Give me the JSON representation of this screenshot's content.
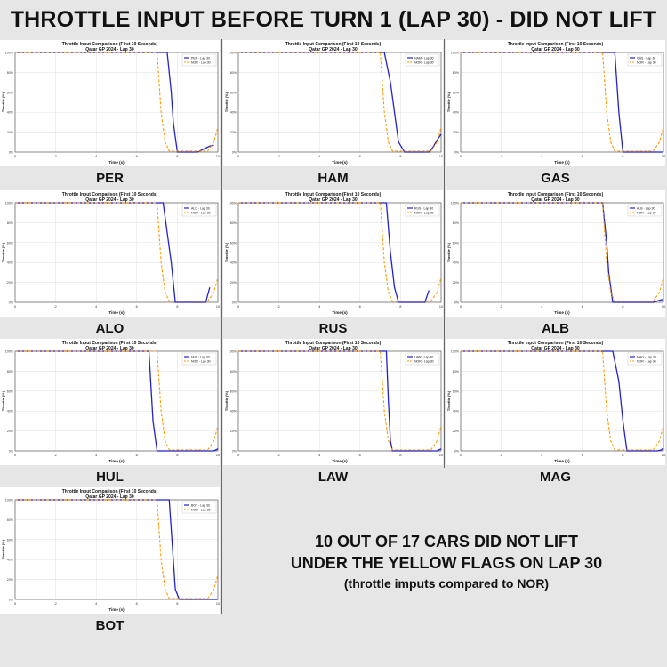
{
  "title": "THROTTLE INPUT BEFORE TURN 1 (LAP 30) - DID NOT LIFT",
  "summary": {
    "line1": "10 OUT OF 17 CARS DID NOT LIFT",
    "line2": "UNDER THE YELLOW FLAGS ON LAP 30",
    "line3": "(throttle imputs compared to NOR)"
  },
  "colors": {
    "driver": "#2222cc",
    "nor": "#ff9900",
    "grid": "#dddddd"
  },
  "chart_common": {
    "title": "Throttle Input Comparison (First 10 Seconds)",
    "subtitle": "Qatar GP 2024 - Lap 30",
    "xlabel": "Time (s)",
    "ylabel": "Throttle (%)",
    "xticks": [
      "0",
      "2",
      "4",
      "6",
      "8",
      "10"
    ],
    "yticks": [
      "0%",
      "20%",
      "40%",
      "60%",
      "80%",
      "100%"
    ]
  },
  "chart_data": [
    {
      "type": "line",
      "driver": "PER",
      "xlim": [
        0,
        10
      ],
      "ylim": [
        0,
        100
      ],
      "series": [
        {
          "name": "PER - Lap 30",
          "x": [
            0,
            7.5,
            7.7,
            7.8,
            8.0,
            9.0,
            9.3,
            9.6,
            9.8
          ],
          "y": [
            100,
            100,
            60,
            30,
            0,
            0,
            3,
            6,
            7
          ]
        },
        {
          "name": "NOR - Lap 30",
          "x": [
            0,
            7.0,
            7.2,
            7.4,
            7.6,
            9.5,
            9.8,
            10.0
          ],
          "y": [
            100,
            100,
            40,
            10,
            1,
            1,
            10,
            25
          ]
        }
      ]
    },
    {
      "type": "line",
      "driver": "HAM",
      "xlim": [
        0,
        10
      ],
      "ylim": [
        0,
        100
      ],
      "series": [
        {
          "name": "HAM - Lap 30",
          "x": [
            0,
            7.2,
            7.5,
            7.7,
            7.9,
            8.2,
            9.4,
            9.6,
            9.8,
            10.0
          ],
          "y": [
            100,
            100,
            70,
            40,
            10,
            0,
            0,
            5,
            12,
            18
          ]
        },
        {
          "name": "NOR - Lap 30",
          "x": [
            0,
            7.0,
            7.2,
            7.4,
            7.6,
            9.5,
            9.8,
            10.0
          ],
          "y": [
            100,
            100,
            40,
            10,
            1,
            1,
            10,
            25
          ]
        }
      ]
    },
    {
      "type": "line",
      "driver": "GAS",
      "xlim": [
        0,
        10
      ],
      "ylim": [
        0,
        100
      ],
      "series": [
        {
          "name": "GAS - Lap 30",
          "x": [
            0,
            7.6,
            7.8,
            8.0,
            10.0
          ],
          "y": [
            100,
            100,
            40,
            0,
            0
          ]
        },
        {
          "name": "NOR - Lap 30",
          "x": [
            0,
            7.0,
            7.2,
            7.4,
            7.6,
            9.5,
            9.8,
            10.0
          ],
          "y": [
            100,
            100,
            40,
            10,
            1,
            1,
            10,
            25
          ]
        }
      ]
    },
    {
      "type": "line",
      "driver": "ALO",
      "xlim": [
        0,
        10
      ],
      "ylim": [
        0,
        100
      ],
      "series": [
        {
          "name": "ALO - Lap 30",
          "x": [
            0,
            7.3,
            7.5,
            7.7,
            7.9,
            9.4,
            9.6
          ],
          "y": [
            100,
            100,
            70,
            40,
            0,
            0,
            15
          ]
        },
        {
          "name": "NOR - Lap 30",
          "x": [
            0,
            7.0,
            7.2,
            7.4,
            7.6,
            9.5,
            9.8,
            10.0
          ],
          "y": [
            100,
            100,
            40,
            10,
            1,
            1,
            10,
            25
          ]
        }
      ]
    },
    {
      "type": "line",
      "driver": "RUS",
      "xlim": [
        0,
        10
      ],
      "ylim": [
        0,
        100
      ],
      "series": [
        {
          "name": "RUS - Lap 30",
          "x": [
            0,
            7.3,
            7.5,
            7.7,
            7.9,
            9.2,
            9.4
          ],
          "y": [
            100,
            100,
            50,
            15,
            0,
            0,
            12
          ]
        },
        {
          "name": "NOR - Lap 30",
          "x": [
            0,
            7.0,
            7.2,
            7.4,
            7.6,
            9.5,
            9.8,
            10.0
          ],
          "y": [
            100,
            100,
            40,
            10,
            1,
            1,
            10,
            25
          ]
        }
      ]
    },
    {
      "type": "line",
      "driver": "ALB",
      "xlim": [
        0,
        10
      ],
      "ylim": [
        0,
        100
      ],
      "series": [
        {
          "name": "ALB - Lap 30",
          "x": [
            0,
            7.0,
            7.2,
            7.3,
            7.5,
            9.5,
            9.8,
            10.0
          ],
          "y": [
            100,
            100,
            60,
            30,
            0,
            0,
            2,
            3
          ]
        },
        {
          "name": "NOR - Lap 30",
          "x": [
            0,
            7.0,
            7.2,
            7.4,
            7.6,
            9.5,
            9.8,
            10.0
          ],
          "y": [
            100,
            100,
            40,
            10,
            1,
            1,
            10,
            25
          ]
        }
      ]
    },
    {
      "type": "line",
      "driver": "HUL",
      "xlim": [
        0,
        10
      ],
      "ylim": [
        0,
        100
      ],
      "series": [
        {
          "name": "HUL - Lap 30",
          "x": [
            0,
            6.6,
            6.8,
            7.0,
            9.8,
            10.0
          ],
          "y": [
            100,
            100,
            30,
            0,
            0,
            2
          ]
        },
        {
          "name": "NOR - Lap 30",
          "x": [
            0,
            7.0,
            7.2,
            7.4,
            7.6,
            9.5,
            9.8,
            10.0
          ],
          "y": [
            100,
            100,
            40,
            10,
            1,
            1,
            10,
            25
          ]
        }
      ]
    },
    {
      "type": "line",
      "driver": "LAW",
      "xlim": [
        0,
        10
      ],
      "ylim": [
        0,
        100
      ],
      "series": [
        {
          "name": "LAW - Lap 30",
          "x": [
            0,
            7.3,
            7.4,
            7.5,
            7.6,
            9.8,
            10.0
          ],
          "y": [
            100,
            100,
            50,
            10,
            0,
            0,
            2
          ]
        },
        {
          "name": "NOR - Lap 30",
          "x": [
            0,
            7.0,
            7.2,
            7.4,
            7.6,
            9.5,
            9.8,
            10.0
          ],
          "y": [
            100,
            100,
            40,
            10,
            1,
            1,
            10,
            25
          ]
        }
      ]
    },
    {
      "type": "line",
      "driver": "MAG",
      "xlim": [
        0,
        10
      ],
      "ylim": [
        0,
        100
      ],
      "series": [
        {
          "name": "MAG - Lap 30",
          "x": [
            0,
            7.5,
            7.8,
            8.0,
            8.2,
            9.7,
            9.9,
            10.0
          ],
          "y": [
            100,
            100,
            70,
            30,
            0,
            0,
            1,
            3
          ]
        },
        {
          "name": "NOR - Lap 30",
          "x": [
            0,
            7.0,
            7.2,
            7.4,
            7.6,
            9.5,
            9.8,
            10.0
          ],
          "y": [
            100,
            100,
            40,
            10,
            1,
            1,
            10,
            25
          ]
        }
      ]
    },
    {
      "type": "line",
      "driver": "BOT",
      "xlim": [
        0,
        10
      ],
      "ylim": [
        0,
        100
      ],
      "series": [
        {
          "name": "BOT - Lap 30",
          "x": [
            0,
            7.6,
            7.8,
            7.9,
            8.1,
            10.0
          ],
          "y": [
            100,
            100,
            40,
            10,
            0,
            0
          ]
        },
        {
          "name": "NOR - Lap 30",
          "x": [
            0,
            7.0,
            7.2,
            7.4,
            7.6,
            9.5,
            9.8,
            10.0
          ],
          "y": [
            100,
            100,
            40,
            10,
            1,
            1,
            10,
            25
          ]
        }
      ]
    }
  ]
}
